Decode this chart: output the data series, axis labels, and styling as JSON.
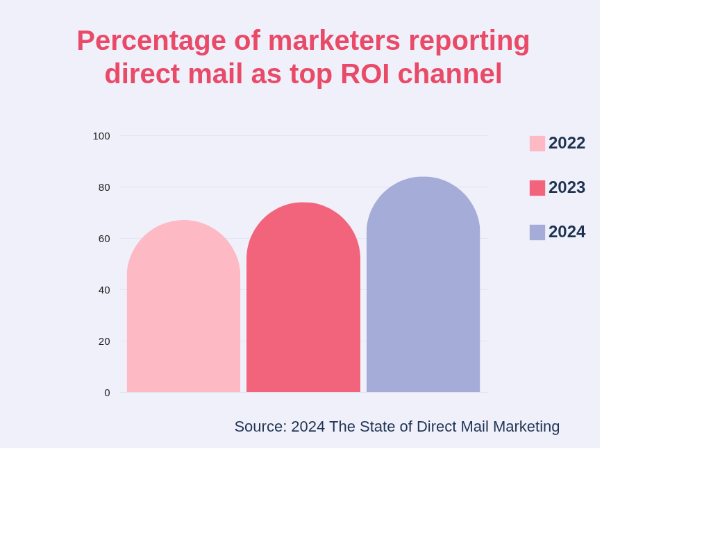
{
  "chart_data": {
    "type": "bar",
    "title": "Percentage of marketers reporting direct mail as top ROI channel",
    "categories": [
      null
    ],
    "series": [
      {
        "name": "2022",
        "color": "#fdbac4",
        "values": [
          67
        ]
      },
      {
        "name": "2023",
        "color": "#f2647c",
        "values": [
          74
        ]
      },
      {
        "name": "2024",
        "color": "#a5acd8",
        "values": [
          84
        ]
      }
    ],
    "ylim": [
      0,
      100
    ],
    "yticks": [
      0,
      20,
      40,
      60,
      80,
      100
    ],
    "grid": "y",
    "legend": "right",
    "annotations": [
      "Source: 2024 The State of Direct Mail Marketing"
    ]
  }
}
